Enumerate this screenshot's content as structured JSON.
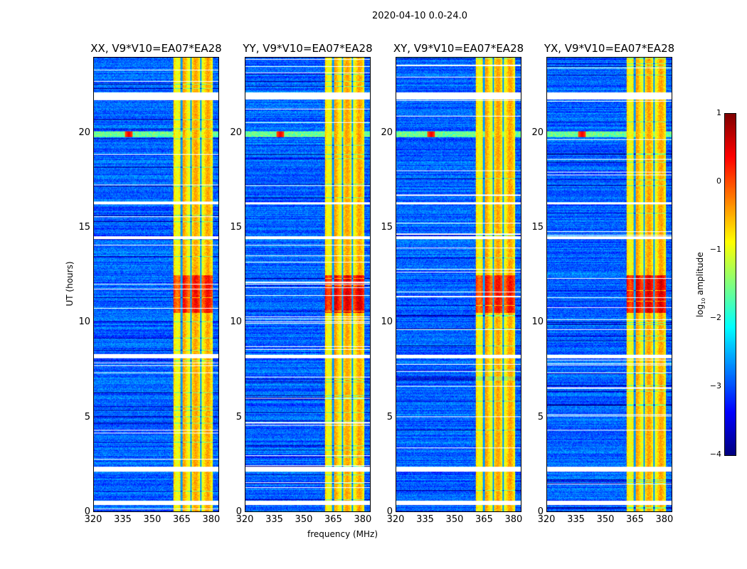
{
  "chart_data": {
    "type": "heatmap",
    "title": "2020-04-10 0.0-24.0",
    "xlabel": "frequency (MHz)",
    "ylabel": "UT (hours)",
    "xlim": [
      320,
      384
    ],
    "ylim": [
      0,
      24
    ],
    "xticks": [
      "320",
      "335",
      "350",
      "365",
      "380"
    ],
    "yticks": [
      "0",
      "5",
      "10",
      "15",
      "20"
    ],
    "panels": [
      {
        "title": "XX, V9*V10=EA07*EA28",
        "pol": "XX"
      },
      {
        "title": "YY, V9*V10=EA07*EA28",
        "pol": "YY"
      },
      {
        "title": "XY, V9*V10=EA07*EA28",
        "pol": "XY"
      },
      {
        "title": "YX, V9*V10=EA07*EA28",
        "pol": "YX"
      }
    ],
    "rfi_band_mhz": [
      361,
      381
    ],
    "rfi_band_gaps_mhz": [
      365,
      370,
      375
    ],
    "flagged_ut_hours": [
      [
        0.35,
        0.55
      ],
      [
        2.1,
        2.35
      ],
      [
        8.1,
        8.3
      ],
      [
        14.4,
        14.55
      ],
      [
        16.25,
        16.35
      ],
      [
        21.8,
        22.15
      ]
    ],
    "rfi_line_ut": [
      19.8,
      20.1
    ],
    "rfi_peak_mhz": 338,
    "strong_interval_ut": [
      10.5,
      12.5
    ],
    "colorbar": {
      "label": "log10 amplitude",
      "label_main": "log",
      "label_sub": "10",
      "label_rest": " amplitude",
      "ticks": [
        "1",
        "0",
        "−1",
        "−2",
        "−3",
        "−4"
      ],
      "range": [
        -4,
        1
      ],
      "colormap": "jet"
    }
  }
}
